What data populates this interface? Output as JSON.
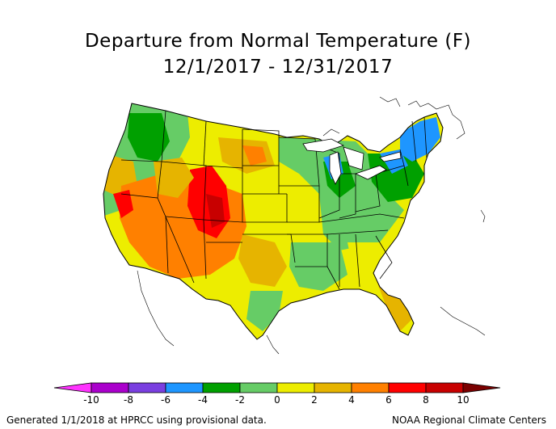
{
  "title": "Departure from Normal Temperature (F)",
  "subtitle": "12/1/2017 - 12/31/2017",
  "legend": {
    "ticks": [
      "-10",
      "-8",
      "-6",
      "-4",
      "-2",
      "0",
      "2",
      "4",
      "6",
      "8",
      "10"
    ],
    "colors": [
      "#ff33ff",
      "#aa00cc",
      "#7a3fe0",
      "#1e96ff",
      "#00a000",
      "#66cc66",
      "#eded00",
      "#e6b400",
      "#ff8000",
      "#ff0000",
      "#c80000",
      "#7a0000"
    ]
  },
  "footer": {
    "left": "Generated 1/1/2018 at HPRCC using provisional data.",
    "right": "NOAA Regional Climate Centers"
  }
}
